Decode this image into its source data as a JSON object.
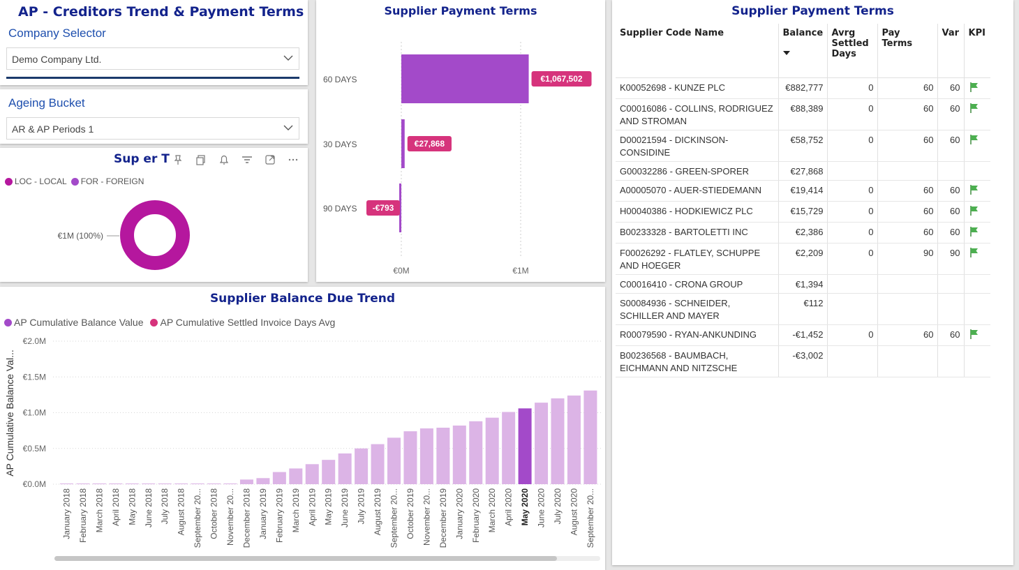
{
  "header": {
    "title": "AP - Creditors Trend & Payment Terms",
    "company_label": "Company Selector",
    "company_value": "Demo Company Ltd."
  },
  "ageing": {
    "label": "Ageing Bucket",
    "value": "AR & AP Periods 1"
  },
  "donut": {
    "title": "Sup    er T",
    "legend": [
      {
        "name": "LOC - LOCAL",
        "color": "#b5179e"
      },
      {
        "name": "FOR - FOREIGN",
        "color": "#a34ac9"
      }
    ],
    "slice_label": "€1M (100%)",
    "colors": {
      "ring": "#b5179e"
    },
    "chart_data": {
      "type": "pie",
      "categories": [
        "LOC - LOCAL",
        "FOR - FOREIGN"
      ],
      "values": [
        100,
        0
      ]
    }
  },
  "payment_terms_chart": {
    "title": "Supplier Payment Terms",
    "colors": {
      "bar": "#a34ac9",
      "label_bg": "#d6337c"
    },
    "chart_data": {
      "type": "bar",
      "orientation": "horizontal",
      "categories": [
        "60 DAYS",
        "30 DAYS",
        "90 DAYS"
      ],
      "values": [
        1067502,
        27868,
        -793
      ],
      "data_labels": [
        "€1,067,502",
        "€27,868",
        "-€793"
      ],
      "xticks": [
        "€0M",
        "€1M"
      ],
      "xlim": [
        0,
        1000000
      ]
    }
  },
  "trend_chart": {
    "title": "Supplier Balance Due Trend",
    "legend": [
      {
        "name": "AP Cumulative Balance Value",
        "color": "#a34ac9"
      },
      {
        "name": "AP Cumulative Settled Invoice Days Avg",
        "color": "#d6337c"
      }
    ],
    "ylabel": "AP Cumulative Balance Val...",
    "yticks": [
      "€2.0M",
      "€1.5M",
      "€1.0M",
      "€0.5M",
      "€0.0M"
    ],
    "colors": {
      "bar": "#dcb4e6",
      "highlight": "#a34ac9"
    },
    "highlight": "May 2020",
    "chart_data": {
      "type": "bar",
      "ylim": [
        0,
        2000000
      ],
      "categories": [
        "January 2018",
        "February 2018",
        "March 2018",
        "April 2018",
        "May 2018",
        "June 2018",
        "July 2018",
        "August 2018",
        "September 20...",
        "October 2018",
        "November 20...",
        "December 2018",
        "January 2019",
        "February 2019",
        "March 2019",
        "April 2019",
        "May 2019",
        "June 2019",
        "July 2019",
        "August 2019",
        "September 20...",
        "October 2019",
        "November 20...",
        "December 2019",
        "January 2020",
        "February 2020",
        "March 2020",
        "April 2020",
        "May 2020",
        "June 2020",
        "July 2020",
        "August 2020",
        "September 20..."
      ],
      "series": [
        {
          "name": "AP Cumulative Balance Value",
          "values": [
            8000,
            8000,
            8000,
            8000,
            8000,
            8000,
            8000,
            8000,
            8000,
            8000,
            8000,
            65000,
            85000,
            170000,
            220000,
            280000,
            340000,
            430000,
            500000,
            560000,
            650000,
            740000,
            780000,
            790000,
            820000,
            880000,
            930000,
            1010000,
            1060000,
            1140000,
            1200000,
            1240000,
            1310000
          ]
        }
      ]
    }
  },
  "table": {
    "title": "Supplier Payment Terms",
    "headers": {
      "name": "Supplier Code Name",
      "balance": "Balance",
      "avg": "Avrg Settled Days",
      "terms": "Pay Terms",
      "var": "Var",
      "kpi": "KPI"
    },
    "rows": [
      {
        "name": "K00052698 - KUNZE PLC",
        "balance": "€882,777",
        "avg": "0",
        "terms": "60",
        "var": "60",
        "kpi": true
      },
      {
        "name": "C00016086 - COLLINS, RODRIGUEZ AND STROMAN",
        "balance": "€88,389",
        "avg": "0",
        "terms": "60",
        "var": "60",
        "kpi": true
      },
      {
        "name": "D00021594 - DICKINSON-CONSIDINE",
        "balance": "€58,752",
        "avg": "0",
        "terms": "60",
        "var": "60",
        "kpi": true
      },
      {
        "name": "G00032286 - GREEN-SPORER",
        "balance": "€27,868",
        "avg": "",
        "terms": "",
        "var": "",
        "kpi": false
      },
      {
        "name": "A00005070 - AUER-STIEDEMANN",
        "balance": "€19,414",
        "avg": "0",
        "terms": "60",
        "var": "60",
        "kpi": true
      },
      {
        "name": "H00040386 - HODKIEWICZ PLC",
        "balance": "€15,729",
        "avg": "0",
        "terms": "60",
        "var": "60",
        "kpi": true
      },
      {
        "name": "B00233328 - BARTOLETTI INC",
        "balance": "€2,386",
        "avg": "0",
        "terms": "60",
        "var": "60",
        "kpi": true
      },
      {
        "name": "F00026292 - FLATLEY, SCHUPPE AND HOEGER",
        "balance": "€2,209",
        "avg": "0",
        "terms": "90",
        "var": "90",
        "kpi": true
      },
      {
        "name": "C00016410 - CRONA GROUP",
        "balance": "€1,394",
        "avg": "",
        "terms": "",
        "var": "",
        "kpi": false
      },
      {
        "name": "S00084936 - SCHNEIDER, SCHILLER AND MAYER",
        "balance": "€112",
        "avg": "",
        "terms": "",
        "var": "",
        "kpi": false
      },
      {
        "name": "R00079590 - RYAN-ANKUNDING",
        "balance": "-€1,452",
        "avg": "0",
        "terms": "60",
        "var": "60",
        "kpi": true
      },
      {
        "name": "B00236568 - BAUMBACH, EICHMANN AND NITZSCHE",
        "balance": "-€3,002",
        "avg": "",
        "terms": "",
        "var": "",
        "kpi": false
      }
    ],
    "kpi_icon": "green-flag-icon",
    "colors": {
      "flag": "#4caf50"
    }
  }
}
